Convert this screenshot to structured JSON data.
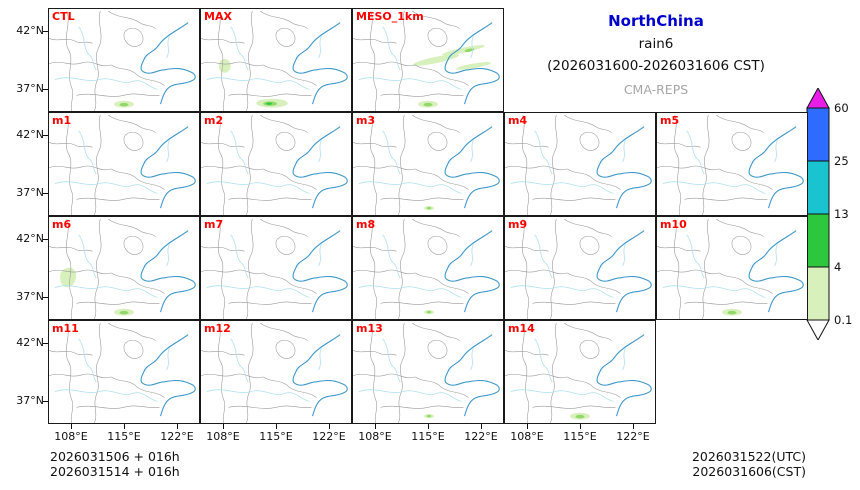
{
  "title": {
    "region": "NorthChina",
    "variable": "rain6",
    "period": "(2026031600-2026031606 CST)",
    "model": "CMA-REPS",
    "region_color": "#0000cc",
    "model_color": "#a6a6a6"
  },
  "panel_label_color": "#ff0000",
  "axes": {
    "y_ticks": [
      "42°N",
      "37°N"
    ],
    "x_ticks": [
      "108°E",
      "115°E",
      "122°E"
    ]
  },
  "rows": [
    {
      "panels": [
        {
          "label": "CTL",
          "blobs": [
            "south-small"
          ]
        },
        {
          "label": "MAX",
          "blobs": [
            "south",
            "west-small"
          ]
        },
        {
          "label": "MESO_1km",
          "blobs": [
            "streaks",
            "south-small"
          ]
        }
      ]
    },
    {
      "panels": [
        {
          "label": "m1",
          "blobs": []
        },
        {
          "label": "m2",
          "blobs": []
        },
        {
          "label": "m3",
          "blobs": [
            "south-dot"
          ]
        },
        {
          "label": "m4",
          "blobs": []
        },
        {
          "label": "m5",
          "blobs": []
        }
      ]
    },
    {
      "panels": [
        {
          "label": "m6",
          "blobs": [
            "west",
            "south-small"
          ]
        },
        {
          "label": "m7",
          "blobs": []
        },
        {
          "label": "m8",
          "blobs": [
            "south-dot"
          ]
        },
        {
          "label": "m9",
          "blobs": []
        },
        {
          "label": "m10",
          "blobs": [
            "south-small"
          ]
        }
      ]
    },
    {
      "panels": [
        {
          "label": "m11",
          "blobs": []
        },
        {
          "label": "m12",
          "blobs": []
        },
        {
          "label": "m13",
          "blobs": [
            "south-dot"
          ]
        },
        {
          "label": "m14",
          "blobs": [
            "south-small"
          ]
        }
      ]
    }
  ],
  "colorbar": {
    "labels": [
      "60",
      "25",
      "13",
      "4",
      "0.1"
    ],
    "segment_colors": [
      "#2e6bff",
      "#19c3cf",
      "#2cc73c",
      "#d8f0bc"
    ],
    "top_arrow_color": "#e81ee8",
    "bottom_arrow_color": "#ffffff"
  },
  "footer": {
    "left_lines": [
      "2026031506 + 016h",
      "2026031514 + 016h"
    ],
    "right_lines": [
      "2026031522(UTC)",
      "2026031606(CST)"
    ]
  }
}
